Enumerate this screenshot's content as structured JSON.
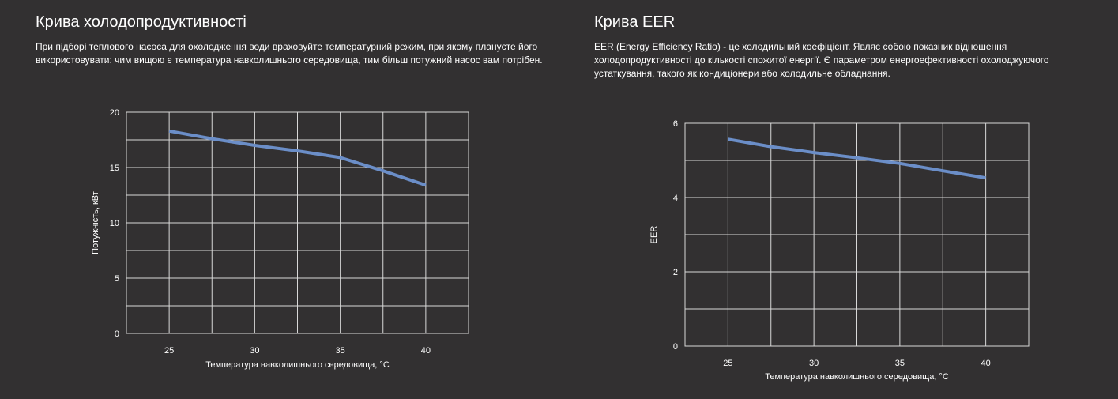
{
  "panels": [
    {
      "title": "Крива холодопродуктивності",
      "description": "При підборі теплового насоса для охолодження води враховуйте температурний режим, при якому плануєте його використовувати: чим вищою є температура навколишнього середовища, тим більш потужний насос вам потрібен."
    },
    {
      "title": "Крива EER",
      "description": "EER (Energy Efficiency Ratio) - це холодильний коефіцієнт. Являє собою показник відношення холодопродуктивності до кількості спожитої енергії. Є параметром енергоефективності охолоджуючого устаткування, такого як кондиціонери або холодильне обладнання."
    }
  ],
  "chart_data": [
    {
      "type": "line",
      "title": "",
      "xlabel": "Температура навколишнього середовища, °C",
      "ylabel": "Потужність, кВт",
      "xlim": [
        22.5,
        42.5
      ],
      "ylim": [
        0,
        20
      ],
      "xticks": [
        25,
        30,
        35,
        40
      ],
      "yticks": [
        0,
        5,
        10,
        15,
        20
      ],
      "grid": true,
      "color": "#6b8ec8",
      "series": [
        {
          "x": [
            25,
            27.5,
            30,
            32.5,
            35,
            37.5,
            40
          ],
          "y": [
            18.3,
            17.6,
            17.0,
            16.5,
            15.9,
            14.7,
            13.4
          ]
        }
      ]
    },
    {
      "type": "line",
      "title": "",
      "xlabel": "Температура навколишнього середовища, °C",
      "ylabel": "EER",
      "xlim": [
        22.5,
        42.5
      ],
      "ylim": [
        0,
        6
      ],
      "xticks": [
        25,
        30,
        35,
        40
      ],
      "yticks": [
        0,
        2,
        4,
        6
      ],
      "grid": true,
      "color": "#6b8ec8",
      "series": [
        {
          "x": [
            25,
            27.5,
            30,
            32.5,
            35,
            37.5,
            40
          ],
          "y": [
            5.57,
            5.37,
            5.21,
            5.07,
            4.92,
            4.72,
            4.53
          ]
        }
      ]
    }
  ]
}
